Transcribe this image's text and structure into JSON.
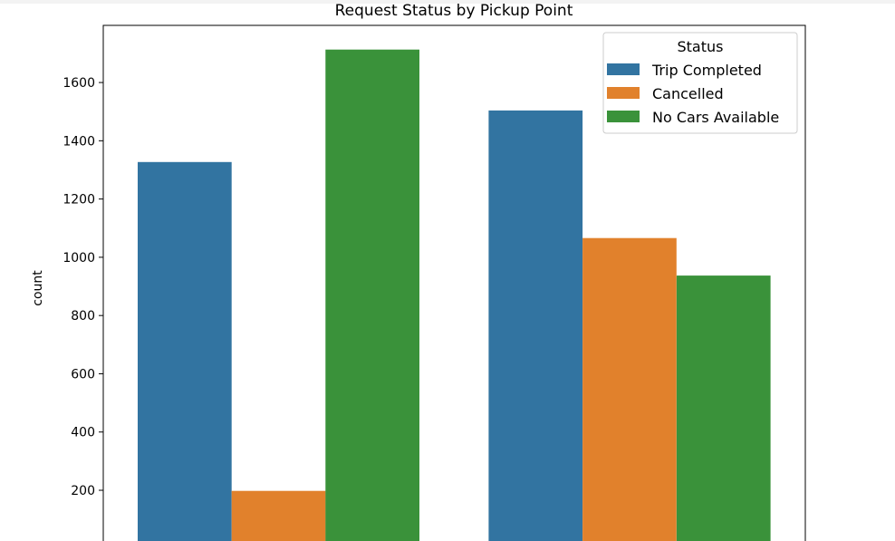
{
  "chart_data": {
    "type": "bar",
    "title": "Request Status by Pickup Point",
    "xlabel": "",
    "ylabel": "count",
    "categories": [
      "",
      ""
    ],
    "series": [
      {
        "name": "Trip Completed",
        "color": "#3274a1",
        "values": [
          1327,
          1504
        ]
      },
      {
        "name": "Cancelled",
        "color": "#e1812c",
        "values": [
          198,
          1066
        ]
      },
      {
        "name": "No Cars Available",
        "color": "#3a923a",
        "values": [
          1713,
          937
        ]
      }
    ],
    "yticks": [
      200,
      400,
      600,
      800,
      1000,
      1200,
      1400,
      1600
    ],
    "ylim": [
      0,
      1800
    ],
    "legend": {
      "title": "Status",
      "placement": "top-right"
    },
    "grid": false
  }
}
